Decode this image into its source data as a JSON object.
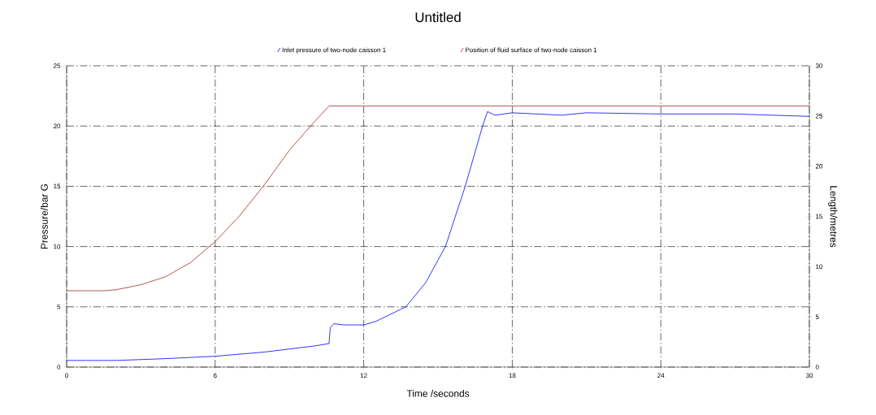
{
  "chart_data": {
    "type": "line",
    "title": "Untitled",
    "xlabel": "Time /seconds",
    "ylabel": "Pressure/bar G",
    "y2label": "Length/metres",
    "xlim": [
      0,
      30
    ],
    "xticks": [
      0,
      6,
      12,
      18,
      24,
      30
    ],
    "ylim": [
      0,
      25
    ],
    "yticks": [
      0,
      5,
      10,
      15,
      20,
      25
    ],
    "y2lim": [
      0,
      30
    ],
    "y2ticks": [
      0,
      5,
      10,
      15,
      20,
      25,
      30
    ],
    "grid": true,
    "legend": "top",
    "line_style": "solid",
    "marker": "none",
    "series": [
      {
        "name": "Inlet pressure of two-node caisson 1",
        "color": "#0000ff",
        "x": [
          0,
          2,
          4,
          6,
          8,
          10,
          10.6,
          10.65,
          10.8,
          11.2,
          12,
          12.5,
          13,
          13.7,
          14.5,
          15.3,
          16.1,
          16.8,
          17.0,
          17.3,
          18,
          20,
          21,
          24,
          27,
          30
        ],
        "values": [
          0.55,
          0.55,
          0.7,
          0.9,
          1.25,
          1.75,
          1.95,
          3.3,
          3.6,
          3.5,
          3.5,
          3.8,
          4.3,
          5.0,
          7.0,
          10.0,
          15.0,
          20.0,
          21.2,
          20.9,
          21.1,
          20.9,
          21.1,
          21.0,
          21.0,
          20.8
        ]
      },
      {
        "name": "Position of fluid surface of two-node caisson 1",
        "color": "#a52a2a",
        "axis": "y2",
        "x": [
          0,
          1.5,
          2,
          3,
          4,
          5,
          6,
          7,
          8,
          9,
          10,
          10.6,
          30
        ],
        "values": [
          7.6,
          7.6,
          7.7,
          8.2,
          9.0,
          10.4,
          12.5,
          15.1,
          18.2,
          21.6,
          24.4,
          26.0,
          26.0
        ]
      }
    ]
  }
}
